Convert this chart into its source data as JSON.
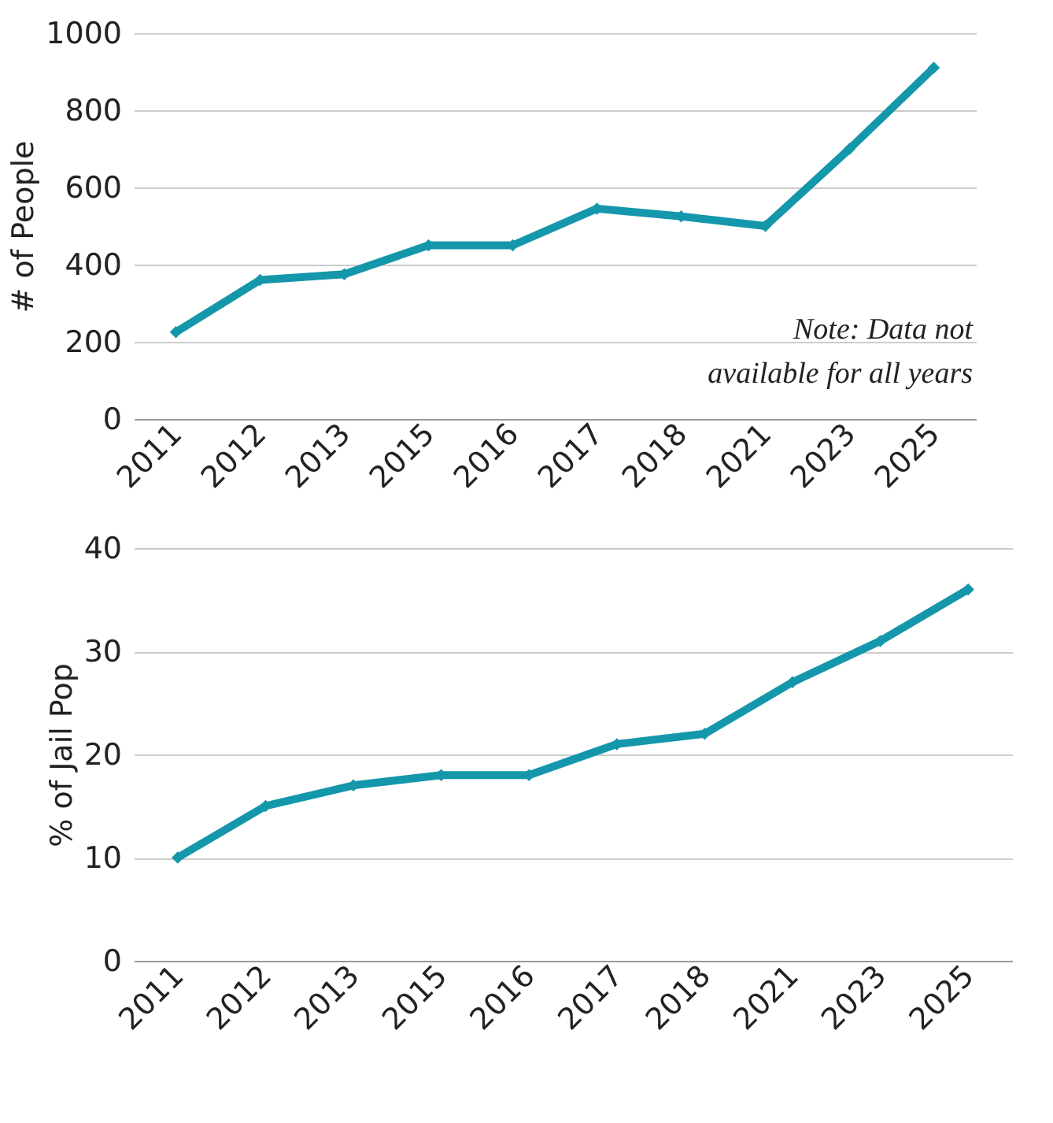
{
  "chart_data": [
    {
      "type": "line",
      "ylabel": "# of People",
      "categories": [
        "2011",
        "2012",
        "2013",
        "2015",
        "2016",
        "2017",
        "2018",
        "2021",
        "2023",
        "2025"
      ],
      "series": [
        {
          "color": "#1597ab",
          "values": [
            225,
            360,
            375,
            450,
            450,
            545,
            525,
            500,
            700,
            910
          ]
        }
      ],
      "ylim": [
        0,
        1000
      ],
      "yticks": [
        0,
        200,
        400,
        600,
        800,
        1000
      ],
      "grid": "y",
      "marker": "diamond",
      "line_style": "solid",
      "annotations": [
        "Note: Data not\navailable for all years"
      ]
    },
    {
      "type": "line",
      "ylabel": "% of Jail Pop",
      "categories": [
        "2011",
        "2012",
        "2013",
        "2015",
        "2016",
        "2017",
        "2018",
        "2021",
        "2023",
        "2025"
      ],
      "series": [
        {
          "color": "#1597ab",
          "values": [
            10,
            15,
            17,
            18,
            18,
            21,
            22,
            27,
            31,
            36
          ]
        }
      ],
      "ylim": [
        0,
        40
      ],
      "yticks": [
        0,
        10,
        20,
        30,
        40
      ],
      "grid": "y",
      "marker": "diamond",
      "line_style": "solid"
    }
  ]
}
